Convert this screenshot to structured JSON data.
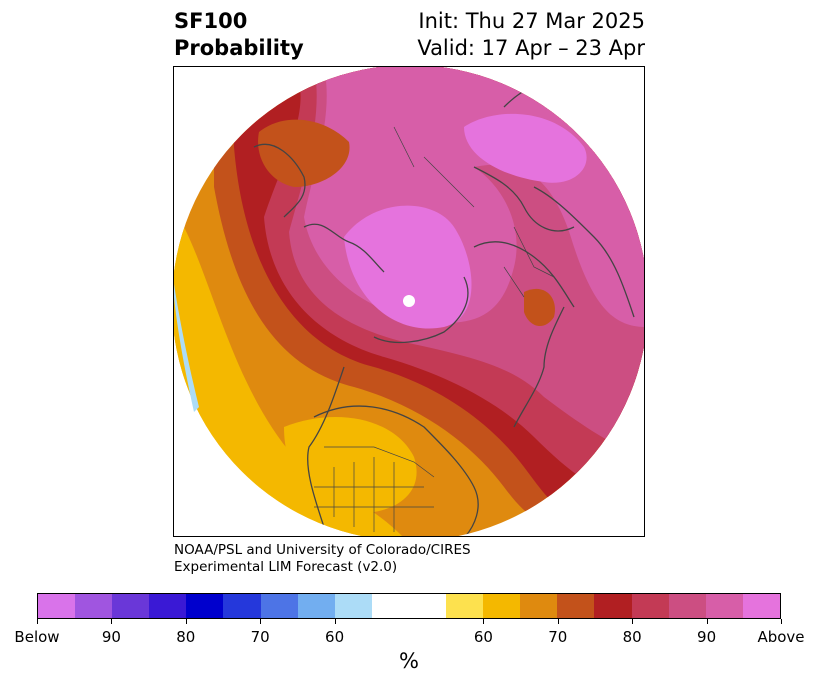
{
  "header": {
    "title_line1": "SF100",
    "title_line2": "Probability",
    "init": "Init: Thu 27 Mar 2025",
    "valid": "Valid: 17 Apr – 23 Apr"
  },
  "credit": {
    "line1": "NOAA/PSL and University of Colorado/CIRES",
    "line2": "Experimental LIM Forecast (v2.0)"
  },
  "colorbar": {
    "colors": [
      "#d973ea",
      "#a055e0",
      "#6a37d8",
      "#3a19d5",
      "#0000cd",
      "#2538db",
      "#4d74e6",
      "#72aef0",
      "#acdcf7",
      "#ffffff",
      "#ffffff",
      "#fde14e",
      "#f4b800",
      "#df8a0f",
      "#c3521b",
      "#b11f22",
      "#c33a55",
      "#cc4e82",
      "#d75ea8",
      "#e573dd"
    ],
    "labels": [
      "Below",
      "90",
      "80",
      "70",
      "60",
      "60",
      "70",
      "80",
      "90",
      "Above"
    ],
    "unit": "%"
  },
  "map_colors": {
    "yellow_light": "#fde14e",
    "yellow": "#f4b800",
    "orange": "#df8a0f",
    "orange_dark": "#c3521b",
    "red": "#b11f22",
    "red_pink": "#c33a55",
    "pink_dark": "#cc4e82",
    "pink": "#d75ea8",
    "magenta": "#e573dd",
    "blue_light": "#acdcf7",
    "coast": "#444444"
  }
}
